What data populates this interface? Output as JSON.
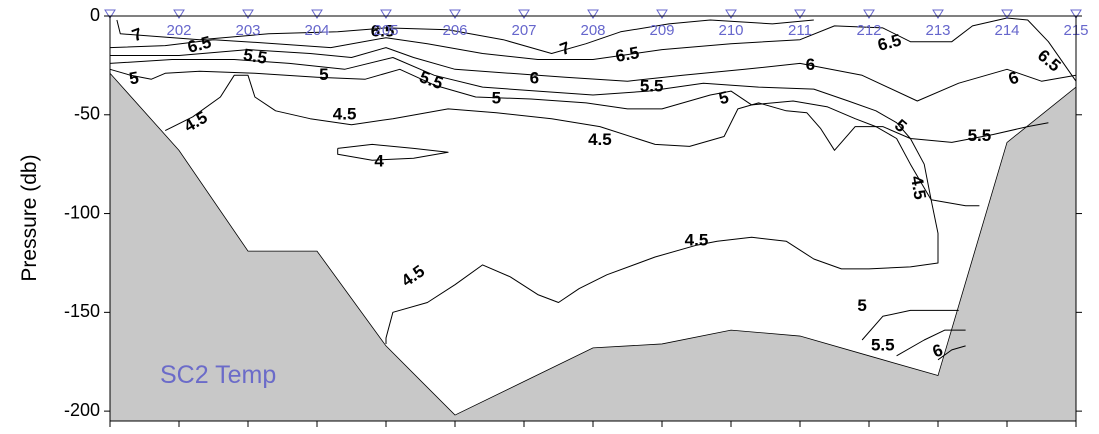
{
  "chart_data": {
    "type": "contour",
    "title": "SC2 Temp",
    "ylabel": "Pressure (db)",
    "xlabel": "",
    "ylim": [
      -205,
      0
    ],
    "yticks": [
      0,
      -50,
      -100,
      -150,
      -200
    ],
    "grid": false,
    "colors": {
      "station": "#6666cc",
      "title": "#6b6bc9",
      "bathymetry": "#c8c8c8",
      "contour": "#000000"
    },
    "stations": [
      {
        "label": "",
        "x": 0
      },
      {
        "label": "202",
        "x": 1
      },
      {
        "label": "203",
        "x": 2
      },
      {
        "label": "204",
        "x": 3
      },
      {
        "label": "205",
        "x": 4
      },
      {
        "label": "206",
        "x": 5
      },
      {
        "label": "207",
        "x": 6
      },
      {
        "label": "208",
        "x": 7
      },
      {
        "label": "209",
        "x": 8
      },
      {
        "label": "210",
        "x": 9
      },
      {
        "label": "211",
        "x": 10
      },
      {
        "label": "212",
        "x": 11
      },
      {
        "label": "213",
        "x": 12
      },
      {
        "label": "214",
        "x": 13
      },
      {
        "label": "215",
        "x": 14
      }
    ],
    "bathymetry": [
      {
        "x": 0,
        "y": -29
      },
      {
        "x": 1,
        "y": -68
      },
      {
        "x": 2,
        "y": -119
      },
      {
        "x": 3,
        "y": -119
      },
      {
        "x": 4,
        "y": -167
      },
      {
        "x": 5,
        "y": -202
      },
      {
        "x": 6,
        "y": -185
      },
      {
        "x": 7,
        "y": -168
      },
      {
        "x": 8,
        "y": -166
      },
      {
        "x": 9,
        "y": -159
      },
      {
        "x": 10,
        "y": -162
      },
      {
        "x": 11,
        "y": -172
      },
      {
        "x": 12,
        "y": -182
      },
      {
        "x": 13,
        "y": -64
      },
      {
        "x": 14,
        "y": -36
      }
    ],
    "contours": [
      {
        "level": "7",
        "points": [
          [
            0.1,
            -2
          ],
          [
            0.15,
            -9
          ],
          [
            1.3,
            -12
          ],
          [
            2.3,
            -9
          ],
          [
            3.3,
            -8
          ],
          [
            4.0,
            -6
          ],
          [
            4.9,
            -7
          ],
          [
            5.7,
            -12
          ],
          [
            6.4,
            -19
          ],
          [
            6.9,
            -14
          ],
          [
            7.4,
            -8
          ],
          [
            8.1,
            -4
          ],
          [
            8.7,
            -2
          ],
          [
            9.6,
            -4
          ],
          [
            10.2,
            -2
          ]
        ]
      },
      {
        "level": "6.5",
        "points": [
          [
            0.0,
            -16
          ],
          [
            0.8,
            -15
          ],
          [
            1.5,
            -12
          ],
          [
            2.4,
            -14
          ],
          [
            3.2,
            -16
          ],
          [
            4.0,
            -11
          ],
          [
            4.6,
            -14
          ],
          [
            5.4,
            -19
          ],
          [
            6.2,
            -22
          ],
          [
            7.0,
            -22
          ],
          [
            8.0,
            -17
          ],
          [
            9.0,
            -14
          ],
          [
            10.0,
            -12
          ],
          [
            10.5,
            -5
          ],
          [
            11.2,
            -6
          ],
          [
            11.6,
            -13
          ],
          [
            12.2,
            -13
          ],
          [
            12.5,
            -5
          ],
          [
            13.0,
            -1
          ],
          [
            13.3,
            -2
          ],
          [
            13.6,
            -13
          ],
          [
            14.0,
            -33
          ]
        ]
      },
      {
        "level": "6",
        "points": [
          [
            0.0,
            -20
          ],
          [
            1.0,
            -20
          ],
          [
            2.0,
            -17
          ],
          [
            2.9,
            -19
          ],
          [
            3.5,
            -21
          ],
          [
            4.0,
            -16
          ],
          [
            4.4,
            -21
          ],
          [
            5.0,
            -27
          ],
          [
            5.8,
            -29
          ],
          [
            6.6,
            -31
          ],
          [
            7.5,
            -33
          ],
          [
            8.3,
            -30
          ],
          [
            9.2,
            -27
          ],
          [
            10.0,
            -24
          ],
          [
            10.9,
            -30
          ],
          [
            11.7,
            -43
          ],
          [
            12.3,
            -34
          ],
          [
            13.0,
            -27
          ],
          [
            13.5,
            -33
          ],
          [
            14.0,
            -30
          ]
        ]
      },
      {
        "level": "5.5",
        "points": [
          [
            0.0,
            -24
          ],
          [
            0.9,
            -22
          ],
          [
            1.8,
            -22
          ],
          [
            2.6,
            -24
          ],
          [
            3.4,
            -27
          ],
          [
            4.1,
            -21
          ],
          [
            4.7,
            -30
          ],
          [
            5.4,
            -36
          ],
          [
            6.2,
            -38
          ],
          [
            7.0,
            -40
          ],
          [
            7.8,
            -38
          ],
          [
            8.6,
            -34
          ],
          [
            9.4,
            -36
          ],
          [
            10.2,
            -37
          ],
          [
            10.7,
            -43
          ],
          [
            11.1,
            -48
          ],
          [
            11.4,
            -54
          ],
          [
            11.6,
            -62
          ],
          [
            12.2,
            -64
          ],
          [
            12.8,
            -60
          ],
          [
            13.3,
            -56
          ],
          [
            13.6,
            -54
          ]
        ]
      },
      {
        "level": "5",
        "points": [
          [
            0.0,
            -27
          ],
          [
            0.3,
            -30
          ],
          [
            0.6,
            -32
          ],
          [
            0.8,
            -29
          ],
          [
            1.3,
            -28
          ],
          [
            2.1,
            -29
          ],
          [
            3.0,
            -31
          ],
          [
            3.7,
            -32
          ],
          [
            4.2,
            -27
          ],
          [
            4.7,
            -35
          ],
          [
            5.3,
            -41
          ],
          [
            6.1,
            -42
          ],
          [
            6.9,
            -44
          ],
          [
            7.5,
            -47
          ],
          [
            8.0,
            -47
          ],
          [
            8.7,
            -40
          ],
          [
            9.0,
            -38
          ],
          [
            9.3,
            -45
          ],
          [
            9.9,
            -43
          ],
          [
            10.4,
            -46
          ],
          [
            10.8,
            -52
          ],
          [
            11.1,
            -56
          ],
          [
            11.4,
            -62
          ],
          [
            11.6,
            -75
          ],
          [
            11.9,
            -93
          ],
          [
            12.4,
            -96
          ],
          [
            12.6,
            -96
          ]
        ]
      },
      {
        "level": "5 (lower)",
        "points": [
          [
            10.9,
            -164
          ],
          [
            11.2,
            -152
          ],
          [
            11.6,
            -149
          ],
          [
            12.1,
            -149
          ],
          [
            12.3,
            -149
          ]
        ]
      },
      {
        "level": "5.5 (lower)",
        "points": [
          [
            11.4,
            -172
          ],
          [
            11.8,
            -164
          ],
          [
            12.1,
            -159
          ],
          [
            12.4,
            -159
          ]
        ]
      },
      {
        "level": "6 (lower)",
        "points": [
          [
            12.0,
            -174
          ],
          [
            12.2,
            -169
          ],
          [
            12.4,
            -167
          ]
        ]
      },
      {
        "level": "4.5 (upper)",
        "points": [
          [
            0.8,
            -58
          ],
          [
            1.2,
            -51
          ],
          [
            1.6,
            -41
          ],
          [
            1.8,
            -30
          ],
          [
            2.0,
            -30
          ],
          [
            2.1,
            -41
          ],
          [
            2.4,
            -48
          ],
          [
            2.9,
            -52
          ],
          [
            3.5,
            -55
          ],
          [
            4.1,
            -52
          ],
          [
            4.9,
            -47
          ],
          [
            5.6,
            -49
          ],
          [
            6.4,
            -52
          ],
          [
            7.1,
            -56
          ],
          [
            7.9,
            -65
          ],
          [
            8.4,
            -66
          ],
          [
            8.9,
            -61
          ],
          [
            9.1,
            -47
          ],
          [
            9.4,
            -44
          ],
          [
            9.8,
            -48
          ],
          [
            10.1,
            -49
          ],
          [
            10.3,
            -57
          ],
          [
            10.5,
            -68
          ],
          [
            10.8,
            -56
          ],
          [
            11.2,
            -56
          ],
          [
            11.6,
            -62
          ],
          [
            11.8,
            -75
          ],
          [
            11.9,
            -93
          ],
          [
            12.0,
            -110
          ],
          [
            12.0,
            -125
          ],
          [
            11.6,
            -127
          ],
          [
            11.0,
            -128
          ],
          [
            10.6,
            -128
          ],
          [
            10.2,
            -123
          ],
          [
            9.8,
            -114
          ],
          [
            9.3,
            -112
          ],
          [
            8.8,
            -114
          ],
          [
            8.5,
            -116
          ],
          [
            7.9,
            -122
          ],
          [
            7.2,
            -131
          ],
          [
            6.8,
            -138
          ],
          [
            6.5,
            -145
          ],
          [
            6.2,
            -141
          ],
          [
            5.8,
            -132
          ],
          [
            5.4,
            -126
          ],
          [
            5.0,
            -136
          ],
          [
            4.6,
            -145
          ],
          [
            4.1,
            -150
          ],
          [
            4.0,
            -163
          ],
          [
            4.0,
            -166
          ]
        ]
      },
      {
        "level": "4",
        "points": [
          [
            3.3,
            -67
          ],
          [
            3.8,
            -65
          ],
          [
            4.4,
            -67
          ],
          [
            4.9,
            -69
          ],
          [
            4.4,
            -72
          ],
          [
            3.8,
            -73
          ],
          [
            3.3,
            -70
          ],
          [
            3.3,
            -67
          ]
        ]
      }
    ],
    "contour_labels": [
      {
        "text": "7",
        "x": 0.4,
        "y": -10,
        "angle": -20
      },
      {
        "text": "6.5",
        "x": 1.3,
        "y": -15,
        "angle": -15
      },
      {
        "text": "5.5",
        "x": 2.1,
        "y": -21,
        "angle": 10
      },
      {
        "text": "5",
        "x": 0.35,
        "y": -32,
        "angle": -10
      },
      {
        "text": "6.5",
        "x": 3.95,
        "y": -8,
        "angle": 0
      },
      {
        "text": "5",
        "x": 3.1,
        "y": -30,
        "angle": 0
      },
      {
        "text": "5.5",
        "x": 4.65,
        "y": -33,
        "angle": 20
      },
      {
        "text": "7",
        "x": 6.6,
        "y": -17,
        "angle": -20
      },
      {
        "text": "6",
        "x": 6.15,
        "y": -32,
        "angle": 0
      },
      {
        "text": "5",
        "x": 5.6,
        "y": -42,
        "angle": 0
      },
      {
        "text": "6.5",
        "x": 7.5,
        "y": -20,
        "angle": -10
      },
      {
        "text": "5.5",
        "x": 7.85,
        "y": -36,
        "angle": 0
      },
      {
        "text": "5",
        "x": 8.9,
        "y": -42,
        "angle": -15
      },
      {
        "text": "6",
        "x": 10.15,
        "y": -25,
        "angle": 0
      },
      {
        "text": "6.5",
        "x": 11.3,
        "y": -14,
        "angle": -15
      },
      {
        "text": "6.5",
        "x": 13.6,
        "y": -23,
        "angle": 40
      },
      {
        "text": "6",
        "x": 13.1,
        "y": -32,
        "angle": -20
      },
      {
        "text": "5",
        "x": 11.45,
        "y": -56,
        "angle": 40
      },
      {
        "text": "5.5",
        "x": 12.6,
        "y": -61,
        "angle": 0
      },
      {
        "text": "4.5",
        "x": 1.25,
        "y": -54,
        "angle": -30
      },
      {
        "text": "4.5",
        "x": 3.4,
        "y": -50,
        "angle": 0
      },
      {
        "text": "4.5",
        "x": 7.1,
        "y": -63,
        "angle": 0
      },
      {
        "text": "4",
        "x": 3.9,
        "y": -74,
        "angle": 0
      },
      {
        "text": "4.5",
        "x": 11.7,
        "y": -87,
        "angle": 80
      },
      {
        "text": "4.5",
        "x": 8.5,
        "y": -114,
        "angle": 0
      },
      {
        "text": "4.5",
        "x": 4.4,
        "y": -132,
        "angle": -35
      },
      {
        "text": "5",
        "x": 10.9,
        "y": -147,
        "angle": 0
      },
      {
        "text": "5.5",
        "x": 11.2,
        "y": -167,
        "angle": 0
      },
      {
        "text": "6",
        "x": 12.0,
        "y": -170,
        "angle": -20
      }
    ]
  }
}
